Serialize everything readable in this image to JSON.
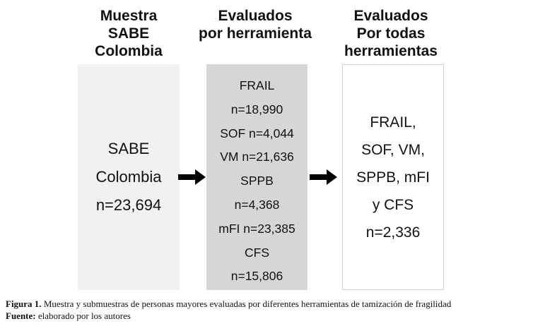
{
  "headings": {
    "col1": "Muestra\nSABE\nColombia",
    "col2": "Evaluados\npor herramienta",
    "col3": "Evaluados\nPor todas\nherramientas"
  },
  "box1": {
    "lines": [
      "SABE",
      "Colombia",
      "n=23,694"
    ]
  },
  "box2": {
    "lines": [
      "FRAIL",
      "n=18,990",
      "SOF n=4,044",
      "VM n=21,636",
      "SPPB",
      "n=4,368",
      "mFI n=23,385",
      "CFS",
      "n=15,806"
    ]
  },
  "box3": {
    "lines": [
      "FRAIL,",
      "SOF, VM,",
      "SPPB, mFI",
      "y CFS",
      "n=2,336"
    ]
  },
  "caption": {
    "figure_label": "Figura 1.",
    "figure_text": " Muestra y submuestras de personas mayores evaluadas por diferentes herramientas de tamización de fragilidad",
    "source_label": "Fuente:",
    "source_text": " elaborado por los autores"
  },
  "colors": {
    "box1_fill": "#f1f1f1",
    "box2_fill": "#d6d6d6",
    "box3_border": "#cfcfcf",
    "arrow": "#000000"
  },
  "icons": [
    "right-arrow-icon",
    "right-arrow-icon"
  ]
}
